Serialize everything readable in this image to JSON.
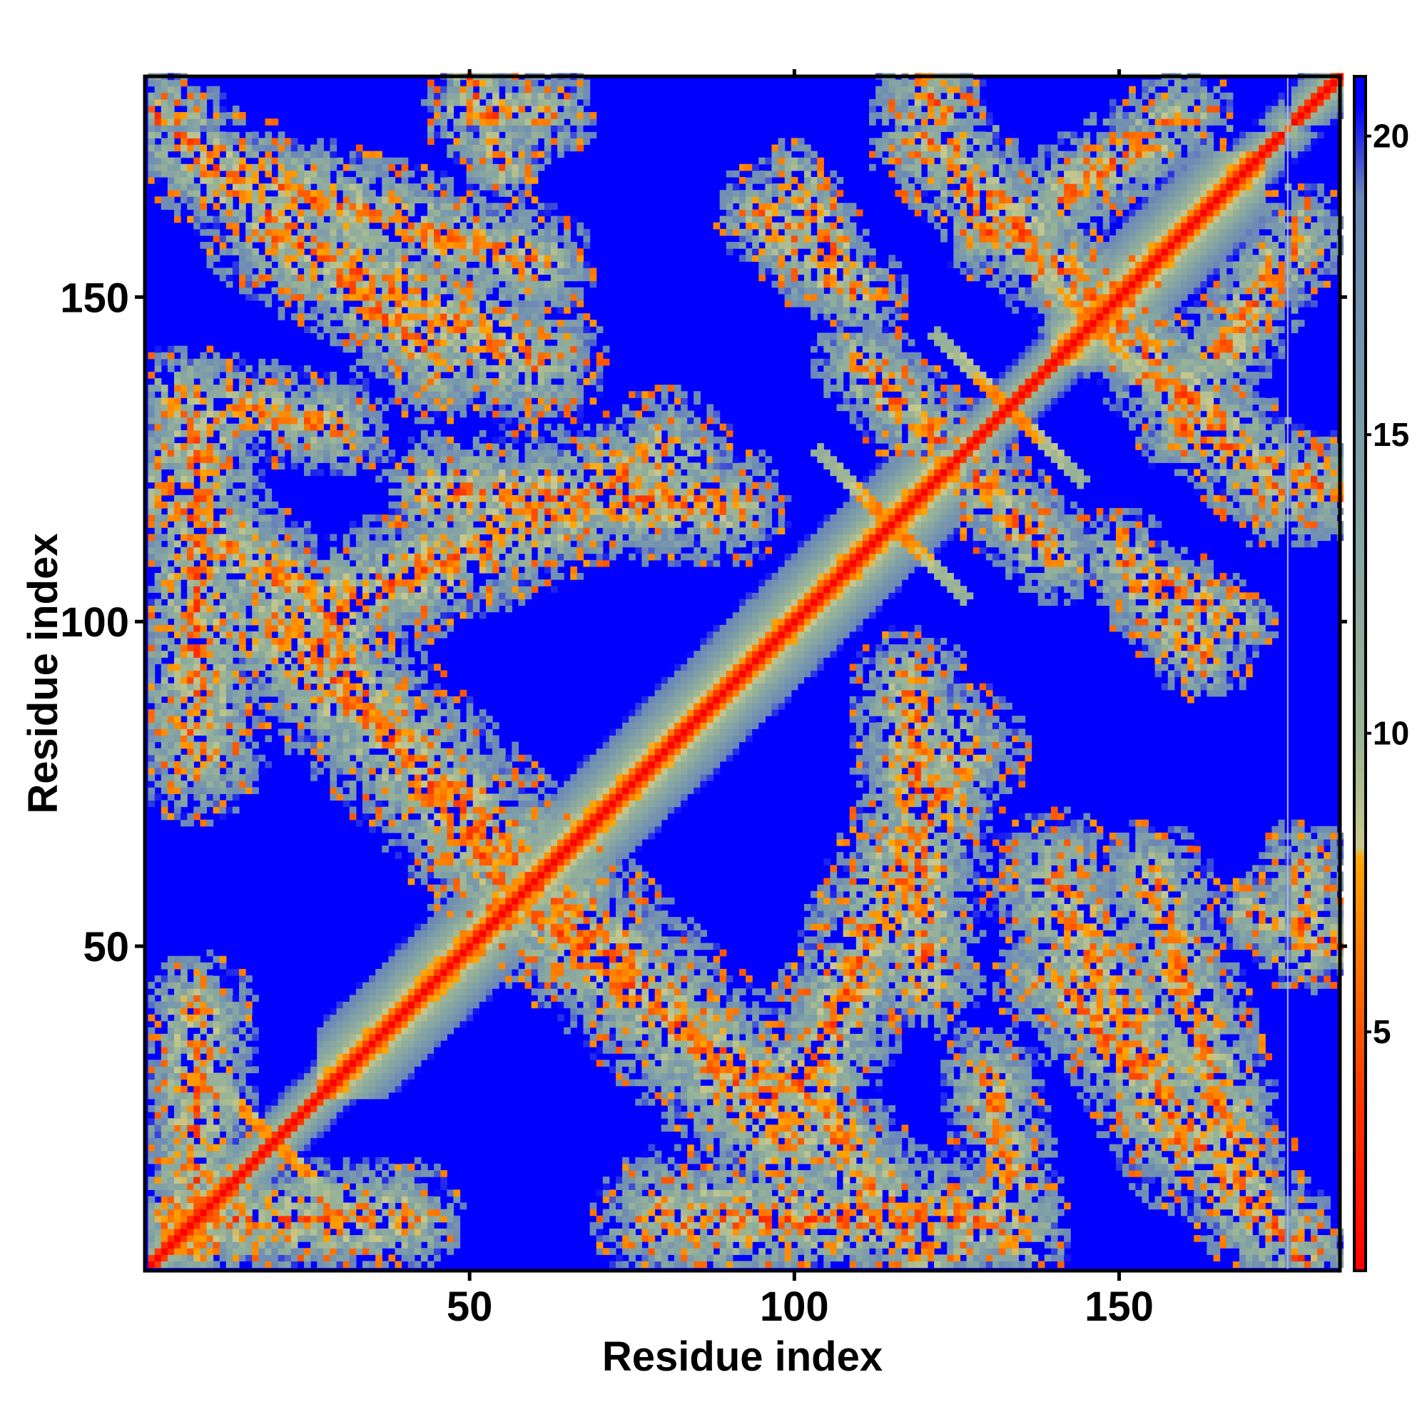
{
  "chart_data": {
    "type": "heatmap",
    "title": "",
    "xlabel": "Residue index",
    "ylabel": "Residue index",
    "n_residues": 184,
    "xlim": [
      1,
      184
    ],
    "ylim": [
      1,
      184
    ],
    "xticks": [
      50,
      100,
      150
    ],
    "yticks": [
      50,
      100,
      150
    ],
    "colorbar": {
      "ticks": [
        5,
        10,
        15,
        20
      ],
      "range": [
        1,
        21
      ],
      "stops": [
        {
          "value": 1,
          "color": "#ff0000"
        },
        {
          "value": 4,
          "color": "#ff3a00"
        },
        {
          "value": 7.9,
          "color": "#ffa500"
        },
        {
          "value": 8.1,
          "color": "#c8c88c"
        },
        {
          "value": 10,
          "color": "#9ab496"
        },
        {
          "value": 15,
          "color": "#7b9caa"
        },
        {
          "value": 19,
          "color": "#6b86b8"
        },
        {
          "value": 20.5,
          "color": "#0000ff"
        }
      ]
    },
    "gap_column": 176,
    "features": {
      "diagonal_width": 3,
      "helix_segments": [
        [
          3,
          12
        ],
        [
          27,
          46
        ],
        [
          46,
          72
        ],
        [
          72,
          100
        ],
        [
          100,
          125
        ],
        [
          140,
          172
        ]
      ],
      "antiparallel_contacts": [
        {
          "center": [
            20,
            20
          ],
          "length": 12
        },
        {
          "center": [
            115,
            115
          ],
          "length": 12
        },
        {
          "center": [
            133,
            133
          ],
          "length": 12
        },
        {
          "center": [
            146,
            146
          ],
          "length": 10
        }
      ],
      "contact_bands": [
        {
          "from": [
            2,
            178
          ],
          "to": [
            45,
            140
          ],
          "width": 6
        },
        {
          "from": [
            2,
            120
          ],
          "to": [
            30,
            100
          ],
          "width": 6
        },
        {
          "from": [
            25,
            100
          ],
          "to": [
            55,
            60
          ],
          "width": 7
        },
        {
          "from": [
            45,
            120
          ],
          "to": [
            90,
            118
          ],
          "width": 6
        },
        {
          "from": [
            60,
            60
          ],
          "to": [
            100,
            20
          ],
          "width": 8
        },
        {
          "from": [
            100,
            25
          ],
          "to": [
            125,
            80
          ],
          "width": 7
        },
        {
          "from": [
            110,
            140
          ],
          "to": [
            140,
            110
          ],
          "width": 5
        },
        {
          "from": [
            120,
            175
          ],
          "to": [
            170,
            125
          ],
          "width": 6
        },
        {
          "from": [
            140,
            60
          ],
          "to": [
            160,
            20
          ],
          "width": 7
        },
        {
          "from": [
            155,
            60
          ],
          "to": [
            170,
            10
          ],
          "width": 6
        },
        {
          "from": [
            80,
            8
          ],
          "to": [
            130,
            8
          ],
          "width": 7
        },
        {
          "from": [
            130,
            30
          ],
          "to": [
            135,
            5
          ],
          "width": 5
        },
        {
          "from": [
            5,
            8
          ],
          "to": [
            40,
            8
          ],
          "width": 6
        },
        {
          "from": [
            50,
            178
          ],
          "to": [
            62,
            178
          ],
          "width": 5
        },
        {
          "from": [
            95,
            163
          ],
          "to": [
            110,
            150
          ],
          "width": 5
        },
        {
          "from": [
            140,
            165
          ],
          "to": [
            160,
            178
          ],
          "width": 5
        },
        {
          "from": [
            160,
            130
          ],
          "to": [
            184,
            120
          ],
          "width": 5
        },
        {
          "from": [
            170,
            55
          ],
          "to": [
            184,
            50
          ],
          "width": 4
        },
        {
          "from": [
            150,
            110
          ],
          "to": [
            168,
            100
          ],
          "width": 4
        }
      ]
    }
  }
}
